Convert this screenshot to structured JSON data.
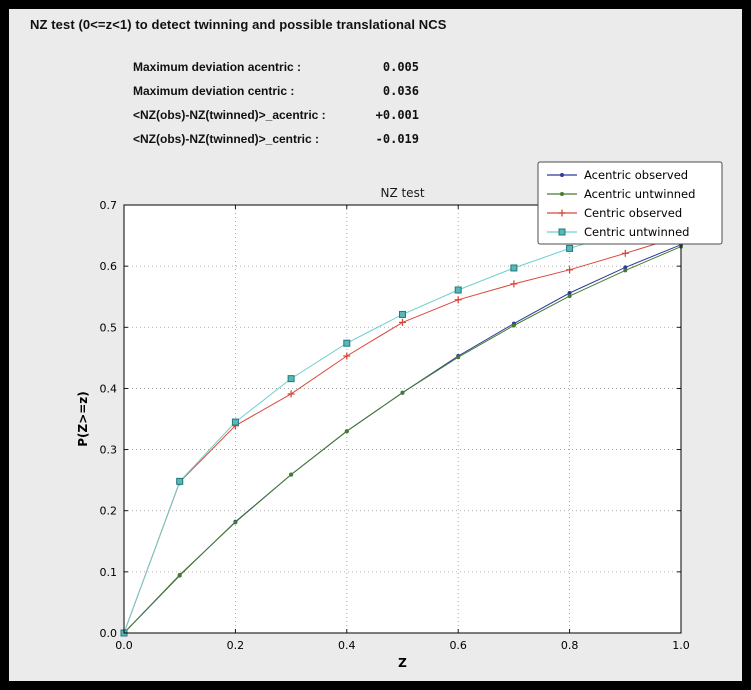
{
  "header": {
    "title": "NZ test (0<=z<1) to detect twinning and possible translational NCS"
  },
  "stats": {
    "rows": [
      {
        "label": "Maximum deviation acentric :",
        "value": "0.005"
      },
      {
        "label": "Maximum deviation centric :",
        "value": "0.036"
      },
      {
        "label": "<NZ(obs)-NZ(twinned)>_acentric :",
        "value": "+0.001"
      },
      {
        "label": "<NZ(obs)-NZ(twinned)>_centric :",
        "value": "-0.019"
      }
    ]
  },
  "chart_data": {
    "type": "line",
    "title": "NZ test",
    "xlabel": "Z",
    "ylabel": "P(Z>=z)",
    "xlim": [
      0.0,
      1.0
    ],
    "ylim": [
      0.0,
      0.7
    ],
    "xticks": [
      0.0,
      0.2,
      0.4,
      0.6,
      0.8,
      1.0
    ],
    "xtick_labels": [
      "0.0",
      "0.2",
      "0.4",
      "0.6",
      "0.8",
      "1.0"
    ],
    "yticks": [
      0.0,
      0.1,
      0.2,
      0.3,
      0.4,
      0.5,
      0.6,
      0.7
    ],
    "ytick_labels": [
      "0.0",
      "0.1",
      "0.2",
      "0.3",
      "0.4",
      "0.5",
      "0.6",
      "0.7"
    ],
    "grid": true,
    "grid_color": "#9a9a9a",
    "plot_bg": "#ffffff",
    "figure_bg": "#ebebeb",
    "legend_position": "top-right",
    "x": [
      0.0,
      0.1,
      0.2,
      0.3,
      0.4,
      0.5,
      0.6,
      0.7,
      0.8,
      0.9,
      1.0
    ],
    "series": [
      {
        "name": "Acentric observed",
        "color": "#2c3a9e",
        "marker": "dot",
        "values": [
          0.0,
          0.094,
          0.182,
          0.259,
          0.33,
          0.393,
          0.453,
          0.506,
          0.556,
          0.598,
          0.635
        ]
      },
      {
        "name": "Acentric untwinned",
        "color": "#457c2e",
        "marker": "dot",
        "values": [
          0.0,
          0.095,
          0.181,
          0.259,
          0.33,
          0.393,
          0.451,
          0.503,
          0.551,
          0.593,
          0.632
        ]
      },
      {
        "name": "Centric observed",
        "color": "#d9483b",
        "marker": "plus",
        "values": [
          0.0,
          0.247,
          0.339,
          0.391,
          0.453,
          0.508,
          0.545,
          0.571,
          0.594,
          0.621,
          0.649
        ]
      },
      {
        "name": "Centric untwinned",
        "color": "#6fcfcf",
        "marker": "square",
        "marker_fill": "#5ab7b7",
        "marker_edge": "#1f7a7a",
        "values": [
          0.0,
          0.248,
          0.345,
          0.416,
          0.474,
          0.521,
          0.561,
          0.597,
          0.629,
          0.657,
          0.683
        ]
      }
    ]
  }
}
